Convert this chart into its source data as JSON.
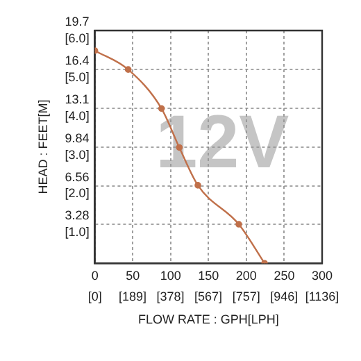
{
  "chart_data": {
    "type": "line",
    "xlabel": "FLOW RATE : GPH[LPH]",
    "ylabel": "HEAD : FEET[M]",
    "annotations": [
      "12V"
    ],
    "x": [
      0,
      44,
      88,
      111.5,
      136,
      190,
      224
    ],
    "series": [
      {
        "color": "#c0704a",
        "values": [
          18.0,
          16.4,
          13.1,
          9.8,
          6.6,
          3.3,
          0
        ]
      }
    ],
    "xlim": [
      0,
      300
    ],
    "xticks": [
      0,
      50,
      100,
      150,
      200,
      250,
      300
    ],
    "x2lim": [
      0,
      1136
    ],
    "x2ticks": [
      {
        "value": 0,
        "label": "[0]"
      },
      {
        "value": 189,
        "label": "[189]"
      },
      {
        "value": 378,
        "label": "[378]"
      },
      {
        "value": 567,
        "label": "[567]"
      },
      {
        "value": 757,
        "label": "[757]"
      },
      {
        "value": 946,
        "label": "[946]"
      },
      {
        "value": 1136,
        "label": "[1136]"
      }
    ],
    "ylim": [
      0,
      19.7
    ],
    "yticks": [
      3.28,
      6.56,
      9.84,
      13.1,
      16.4,
      19.7
    ],
    "y2lim": [
      0,
      6.0
    ],
    "y2ticks": [
      {
        "value": 1.0,
        "label": "[1.0]"
      },
      {
        "value": 2.0,
        "label": "[2.0]"
      },
      {
        "value": 3.0,
        "label": "[3.0]"
      },
      {
        "value": 4.0,
        "label": "[4.0]"
      },
      {
        "value": 5.0,
        "label": "[5.0]"
      },
      {
        "value": 6.0,
        "label": "[6.0]"
      }
    ],
    "grid": true,
    "marker": "circle",
    "legend": false
  }
}
